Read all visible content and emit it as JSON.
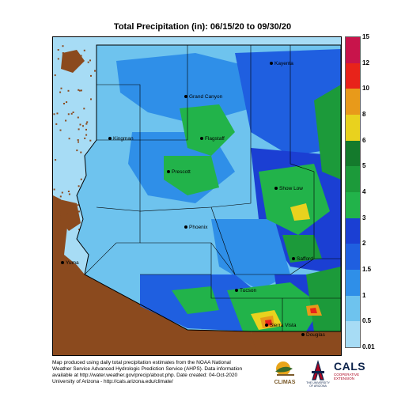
{
  "title": "Total Precipitation (in): 06/15/20 to 09/30/20",
  "legend": {
    "bands": [
      {
        "from": 0.01,
        "to": 0.5,
        "color": "#a7dcf5"
      },
      {
        "from": 0.5,
        "to": 1,
        "color": "#6ec3ee"
      },
      {
        "from": 1,
        "to": 1.5,
        "color": "#2f8fe8"
      },
      {
        "from": 1.5,
        "to": 2,
        "color": "#1f5fe0"
      },
      {
        "from": 2,
        "to": 3,
        "color": "#1b3fd3"
      },
      {
        "from": 3,
        "to": 4,
        "color": "#22b34a"
      },
      {
        "from": 4,
        "to": 5,
        "color": "#1c9a3a"
      },
      {
        "from": 5,
        "to": 6,
        "color": "#147a2c"
      },
      {
        "from": 6,
        "to": 8,
        "color": "#e9d21e"
      },
      {
        "from": 8,
        "to": 10,
        "color": "#e89a1a"
      },
      {
        "from": 10,
        "to": 12,
        "color": "#e8231a"
      },
      {
        "from": 12,
        "to": 15,
        "color": "#c8144b"
      }
    ],
    "labels": [
      "15",
      "12",
      "10",
      "8",
      "6",
      "5",
      "4",
      "3",
      "2",
      "1.5",
      "1",
      "0.5",
      "0.01"
    ]
  },
  "cities": [
    {
      "name": "Kayenta"
    },
    {
      "name": "Grand Canyon"
    },
    {
      "name": "Kingman"
    },
    {
      "name": "Flagstaff"
    },
    {
      "name": "Prescott"
    },
    {
      "name": "Show Low"
    },
    {
      "name": "Phoenix"
    },
    {
      "name": "Yuma"
    },
    {
      "name": "Safford"
    },
    {
      "name": "Tucson"
    },
    {
      "name": "Sierra Vista"
    },
    {
      "name": "Douglas"
    }
  ],
  "footer": {
    "line1": "Map produced using daily total precipitation estimates from the NOAA National",
    "line2": "Weather Service Advanced Hydrologic Prediction Service (AHPS). Data information",
    "line3": "available at http://water.weather.gov/precip/about.php. Date created: 04-Oct-2020",
    "line4": "University of Arizona - http://cals.arizona.edu/climate/"
  },
  "logos": {
    "climas": "CLIMAS",
    "ua_line1": "THE UNIVERSITY",
    "ua_line2": "OF ARIZONA",
    "cals": "CALS",
    "cals_sub1": "COOPERATIVE",
    "cals_sub2": "EXTENSION"
  },
  "colors": {
    "outside_land": "#8b4a1e",
    "outside_dots": "#8b4a1e"
  }
}
